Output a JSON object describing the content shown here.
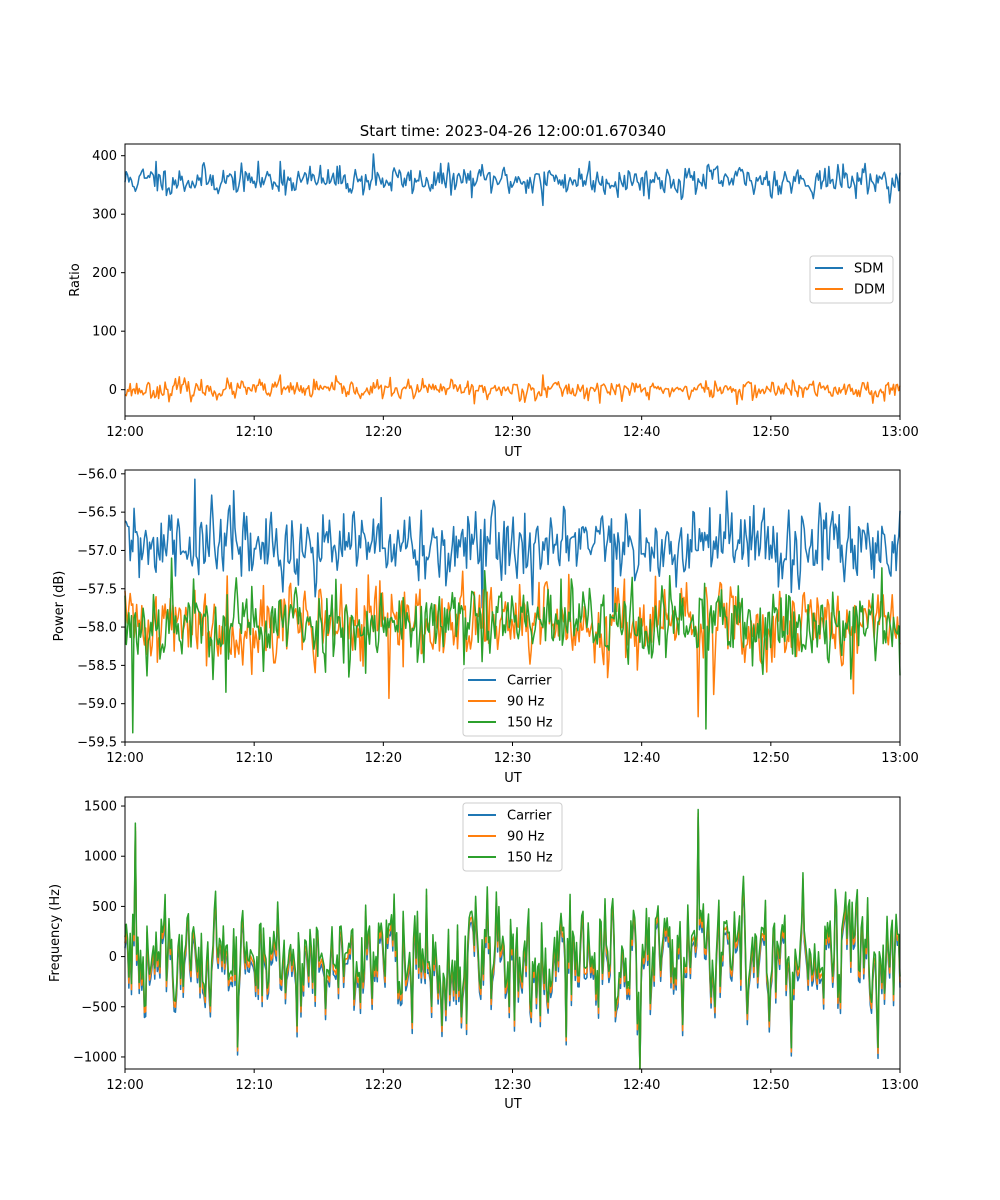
{
  "chart_data": [
    {
      "type": "line",
      "title": "Start time: 2023-04-26 12:00:01.670340",
      "xlabel": "UT",
      "ylabel": "Ratio",
      "xlim": [
        "12:00",
        "13:00"
      ],
      "ylim": [
        -45,
        420
      ],
      "xticks": [
        "12:00",
        "12:10",
        "12:20",
        "12:30",
        "12:40",
        "12:50",
        "13:00"
      ],
      "yticks": [
        0,
        100,
        200,
        300,
        400
      ],
      "legend": "center-right",
      "grid": false,
      "series": [
        {
          "name": "SDM",
          "color": "#1f77b4",
          "mean": 358,
          "amp": 14,
          "peaks": [
            [
              0.02,
              368
            ],
            [
              0.04,
              390
            ],
            [
              0.2,
              390
            ],
            [
              0.32,
              403
            ],
            [
              0.54,
              315
            ],
            [
              0.6,
              390
            ]
          ],
          "seed": 11
        },
        {
          "name": "DDM",
          "color": "#ff7f0e",
          "mean": 0,
          "amp": 9,
          "peaks": [
            [
              0.07,
              22
            ],
            [
              0.2,
              25
            ],
            [
              0.45,
              -24
            ],
            [
              0.54,
              25
            ],
            [
              0.79,
              -25
            ]
          ],
          "seed": 23
        }
      ]
    },
    {
      "type": "line",
      "title": "",
      "xlabel": "UT",
      "ylabel": "Power (dB)",
      "xlim": [
        "12:00",
        "13:00"
      ],
      "ylim": [
        -59.5,
        -55.95
      ],
      "xticks": [
        "12:00",
        "12:10",
        "12:20",
        "12:30",
        "12:40",
        "12:50",
        "13:00"
      ],
      "yticks": [
        -59.5,
        -59.0,
        -58.5,
        -58.0,
        -57.5,
        -57.0,
        -56.5,
        -56.0
      ],
      "legend": "lower-center",
      "grid": false,
      "series": [
        {
          "name": "Carrier",
          "color": "#1f77b4",
          "mean": -56.95,
          "amp": 0.28,
          "peaks": [
            [
              0.09,
              -56.07
            ],
            [
              0.14,
              -56.22
            ],
            [
              0.46,
              -57.75
            ],
            [
              0.63,
              -57.8
            ]
          ],
          "seed": 31
        },
        {
          "name": "90 Hz",
          "color": "#ff7f0e",
          "mean": -57.95,
          "amp": 0.3,
          "peaks": [
            [
              0.34,
              -58.93
            ],
            [
              0.74,
              -59.17
            ],
            [
              0.76,
              -58.88
            ],
            [
              0.94,
              -58.87
            ]
          ],
          "seed": 41
        },
        {
          "name": "150 Hz",
          "color": "#2ca02c",
          "mean": -57.95,
          "amp": 0.3,
          "peaks": [
            [
              0.01,
              -59.38
            ],
            [
              0.06,
              -57.1
            ],
            [
              0.13,
              -58.85
            ],
            [
              0.75,
              -59.33
            ]
          ],
          "seed": 53
        }
      ]
    },
    {
      "type": "line",
      "title": "",
      "xlabel": "UT",
      "ylabel": "Frequency (Hz)",
      "xlim": [
        "12:00",
        "13:00"
      ],
      "ylim": [
        -1120,
        1590
      ],
      "xticks": [
        "12:00",
        "12:10",
        "12:20",
        "12:30",
        "12:40",
        "12:50",
        "13:00"
      ],
      "yticks": [
        -1000,
        -500,
        0,
        500,
        1000,
        1500
      ],
      "legend": "upper-center",
      "grid": false,
      "series": [
        {
          "name": "Carrier",
          "color": "#1f77b4",
          "mean": -90,
          "amp": 330,
          "peaks": [
            [
              0.013,
              1250
            ],
            [
              0.145,
              -980
            ],
            [
              0.57,
              -880
            ],
            [
              0.74,
              1390
            ],
            [
              0.86,
              -990
            ]
          ],
          "seed": 61
        },
        {
          "name": "90 Hz",
          "color": "#ff7f0e",
          "mean": -40,
          "amp": 330,
          "peaks": [
            [
              0.013,
              1290
            ],
            [
              0.145,
              -940
            ],
            [
              0.57,
              -840
            ],
            [
              0.74,
              1430
            ],
            [
              0.86,
              -950
            ]
          ],
          "seed": 61
        },
        {
          "name": "150 Hz",
          "color": "#2ca02c",
          "mean": 20,
          "amp": 330,
          "peaks": [
            [
              0.013,
              1330
            ],
            [
              0.145,
              -900
            ],
            [
              0.57,
              -800
            ],
            [
              0.74,
              1465
            ],
            [
              0.86,
              -910
            ]
          ],
          "seed": 61
        }
      ]
    }
  ]
}
